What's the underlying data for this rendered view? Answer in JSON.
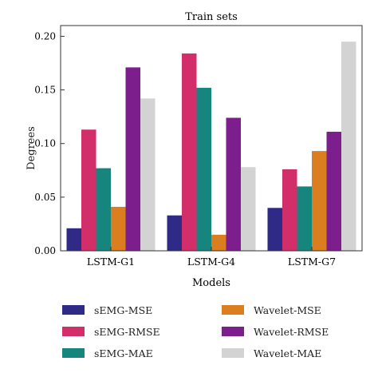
{
  "chart_data": {
    "type": "bar",
    "title": "Train sets",
    "xlabel": "Models",
    "ylabel": "Degrees",
    "categories": [
      "LSTM-G1",
      "LSTM-G4",
      "LSTM-G7"
    ],
    "ylim": [
      0,
      0.21
    ],
    "yticks": [
      "0.00",
      "0.05",
      "0.10",
      "0.15",
      "0.20"
    ],
    "grid": false,
    "legend_position": "bottom",
    "series": [
      {
        "name": "sEMG-MSE",
        "color": "#2e2a86",
        "values": [
          0.021,
          0.033,
          0.04
        ]
      },
      {
        "name": "sEMG-RMSE",
        "color": "#d22e6a",
        "values": [
          0.113,
          0.184,
          0.076
        ]
      },
      {
        "name": "sEMG-MAE",
        "color": "#16857e",
        "values": [
          0.077,
          0.152,
          0.06
        ]
      },
      {
        "name": "Wavelet-MSE",
        "color": "#da7e1f",
        "values": [
          0.041,
          0.015,
          0.093
        ]
      },
      {
        "name": "Wavelet-RMSE",
        "color": "#7c1e8c",
        "values": [
          0.171,
          0.124,
          0.111
        ]
      },
      {
        "name": "Wavelet-MAE",
        "color": "#d3d3d3",
        "values": [
          0.142,
          0.078,
          0.195
        ]
      }
    ]
  }
}
